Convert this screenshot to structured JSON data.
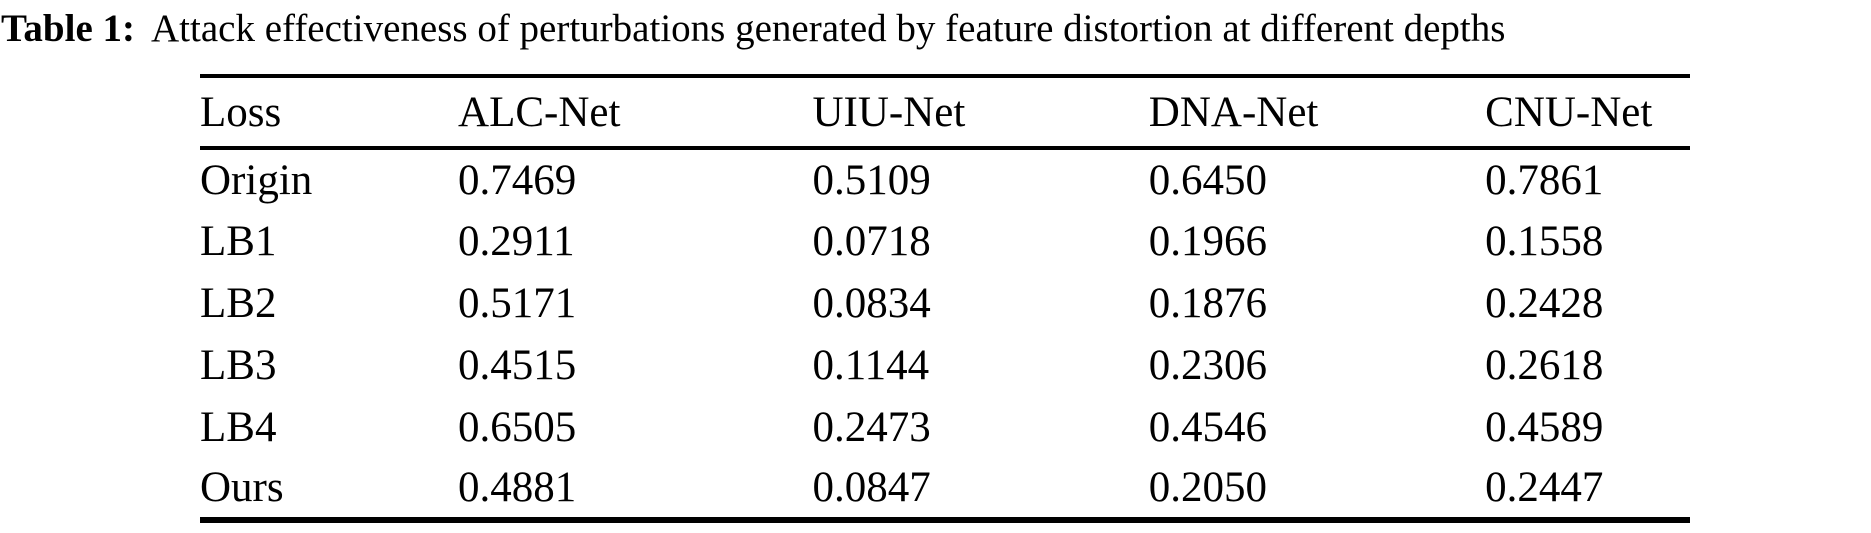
{
  "caption": {
    "label": "Table 1:",
    "text": "Attack effectiveness of perturbations generated by feature distortion at different depths"
  },
  "table": {
    "columns": [
      "Loss",
      "ALC-Net",
      "UIU-Net",
      "DNA-Net",
      "CNU-Net"
    ],
    "rows": [
      {
        "label": "Origin",
        "values": [
          "0.7469",
          "0.5109",
          "0.6450",
          "0.7861"
        ],
        "bold_values": true
      },
      {
        "label": "LB1",
        "values": [
          "0.2911",
          "0.0718",
          "0.1966",
          "0.1558"
        ],
        "bold_values": false
      },
      {
        "label": "LB2",
        "values": [
          "0.5171",
          "0.0834",
          "0.1876",
          "0.2428"
        ],
        "bold_values": false
      },
      {
        "label": "LB3",
        "values": [
          "0.4515",
          "0.1144",
          "0.2306",
          "0.2618"
        ],
        "bold_values": false
      },
      {
        "label": "LB4",
        "values": [
          "0.6505",
          "0.2473",
          "0.4546",
          "0.4589"
        ],
        "bold_values": false
      },
      {
        "label": "Ours",
        "values": [
          "0.4881",
          "0.0847",
          "0.2050",
          "0.2447"
        ],
        "bold_values": true
      }
    ]
  },
  "colors": {
    "text": "#000000",
    "background": "#ffffff",
    "rule": "#000000"
  }
}
